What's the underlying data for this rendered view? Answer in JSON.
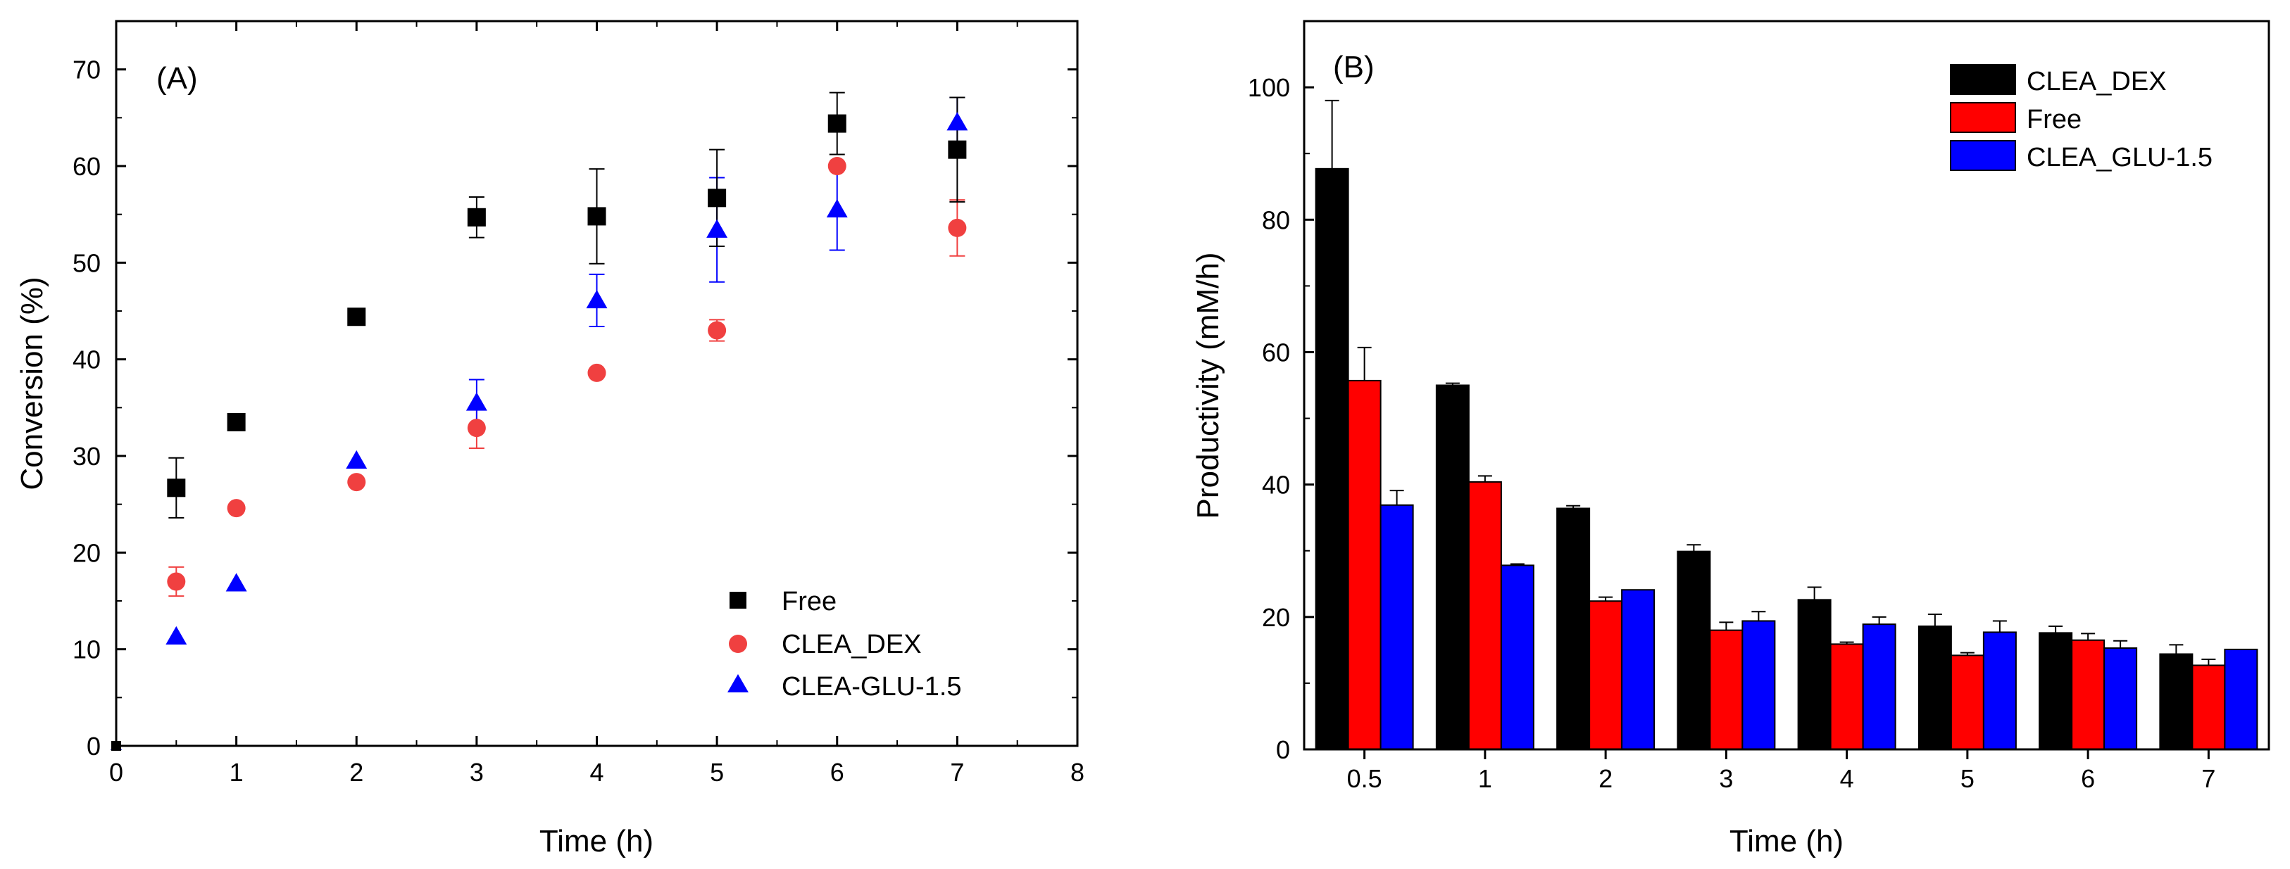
{
  "chart_data": [
    {
      "type": "scatter",
      "panel_label": "(A)",
      "xlabel": "Time (h)",
      "ylabel": "Conversion (%)",
      "xlim": [
        0,
        8
      ],
      "ylim": [
        0,
        75
      ],
      "xticks": [
        0,
        1,
        2,
        3,
        4,
        5,
        6,
        7,
        8
      ],
      "yticks": [
        0,
        10,
        20,
        30,
        40,
        50,
        60,
        70
      ],
      "legend_position": "bottom-right",
      "series": [
        {
          "name": "Free",
          "marker": "square",
          "color": "#000000",
          "x": [
            0,
            0.5,
            1,
            2,
            3,
            4,
            5,
            6,
            7
          ],
          "y": [
            0,
            26.7,
            33.5,
            44.4,
            54.7,
            54.8,
            56.7,
            64.4,
            61.7
          ],
          "err": [
            0,
            3.1,
            0,
            0,
            2.1,
            4.9,
            5.0,
            3.2,
            5.4
          ]
        },
        {
          "name": "CLEA_DEX",
          "marker": "circle",
          "color": "#f04040",
          "x": [
            0,
            0.5,
            1,
            2,
            3,
            4,
            5,
            6,
            7
          ],
          "y": [
            0,
            17.0,
            24.6,
            27.3,
            32.9,
            38.6,
            43.0,
            60.0,
            53.6
          ],
          "err": [
            0,
            1.5,
            0,
            0,
            2.1,
            0,
            1.1,
            0,
            2.9
          ]
        },
        {
          "name": "CLEA-GLU-1.5",
          "marker": "triangle",
          "color": "#0000ff",
          "x": [
            0,
            0.5,
            1,
            2,
            3,
            4,
            5,
            6,
            7
          ],
          "y": [
            0,
            11.3,
            16.8,
            29.5,
            35.5,
            46.1,
            53.4,
            55.5,
            64.5
          ],
          "err": [
            0,
            0,
            0,
            0,
            2.4,
            2.7,
            5.4,
            4.2,
            2.6
          ]
        }
      ]
    },
    {
      "type": "bar",
      "panel_label": "(B)",
      "xlabel": "Time (h)",
      "ylabel": "Productivity (mM/h)",
      "ylim": [
        0,
        110
      ],
      "yticks": [
        0,
        20,
        40,
        60,
        80,
        100
      ],
      "categories": [
        "0.5",
        "1",
        "2",
        "3",
        "4",
        "5",
        "6",
        "7"
      ],
      "legend_position": "top-right",
      "series": [
        {
          "name": "CLEA_DEX",
          "color": "#000000",
          "values": [
            87.7,
            55.0,
            36.4,
            29.9,
            22.6,
            18.6,
            17.6,
            14.4
          ],
          "err": [
            10.3,
            0.3,
            0.4,
            1.0,
            1.9,
            1.8,
            1.0,
            1.4
          ]
        },
        {
          "name": "Free",
          "color": "#ff0000",
          "values": [
            55.7,
            40.4,
            22.4,
            18.0,
            15.9,
            14.2,
            16.5,
            12.7
          ],
          "err": [
            5.0,
            0.9,
            0.6,
            1.2,
            0.3,
            0.4,
            1.0,
            0.9
          ]
        },
        {
          "name": "CLEA_GLU-1.5",
          "color": "#0000ff",
          "values": [
            36.9,
            27.8,
            24.1,
            19.4,
            18.9,
            17.7,
            15.3,
            15.1
          ],
          "err": [
            2.2,
            0.2,
            0,
            1.4,
            1.1,
            1.7,
            1.1,
            0
          ]
        }
      ]
    }
  ]
}
